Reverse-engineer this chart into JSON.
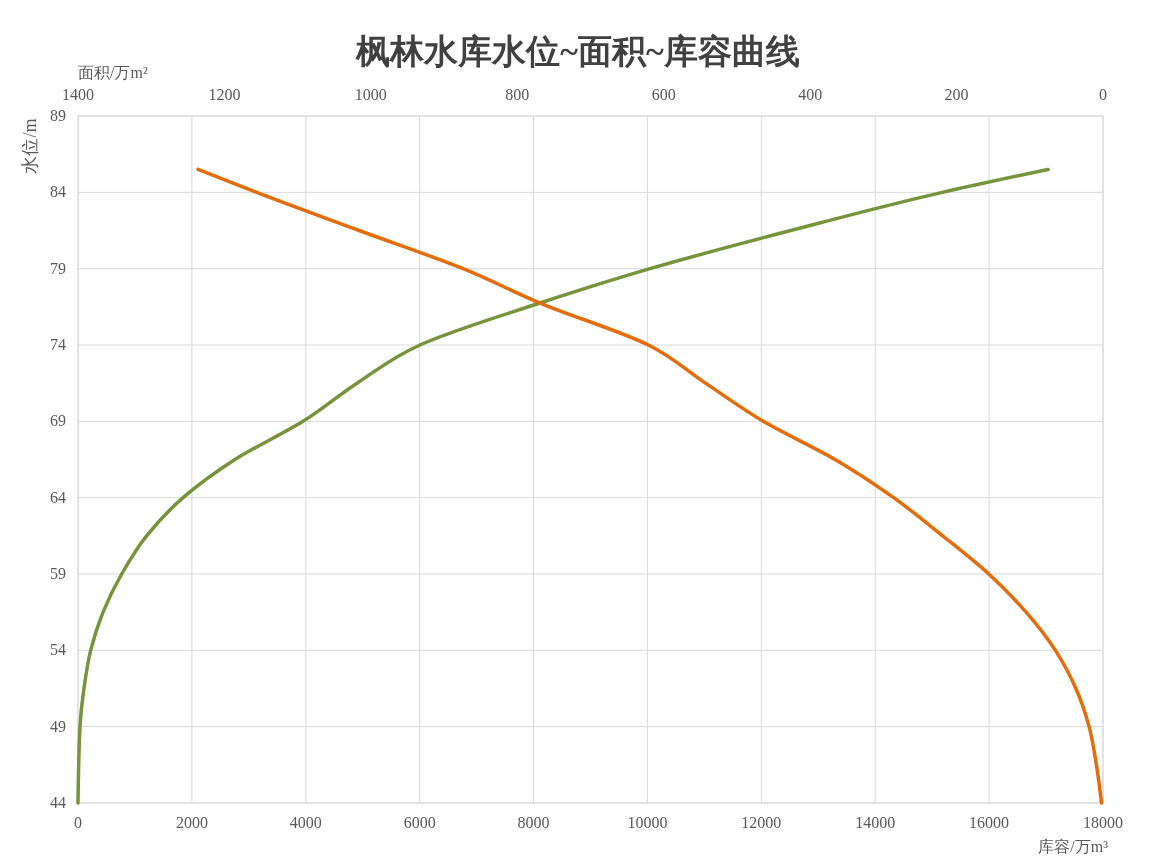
{
  "chart_data": {
    "type": "line",
    "title": "枫林水库水位~面积~库容曲线",
    "xlabel": "库容/万m³",
    "x2label": "面积/万m²",
    "ylabel": "水位/m",
    "xlim": [
      0,
      18000
    ],
    "xticks": [
      0,
      2000,
      4000,
      6000,
      8000,
      10000,
      12000,
      14000,
      16000,
      18000
    ],
    "x2lim": [
      1400,
      0
    ],
    "x2ticks": [
      1400,
      1200,
      1000,
      800,
      600,
      400,
      200,
      0
    ],
    "ylim": [
      44,
      89
    ],
    "yticks": [
      44,
      49,
      54,
      59,
      64,
      69,
      74,
      79,
      84,
      89
    ],
    "grid": true,
    "marker": "none",
    "line_style": "solid",
    "series": [
      {
        "color": "#77933c",
        "x": [
          0,
          35,
          105,
          222,
          440,
          767,
          1205,
          1845,
          2757,
          3951,
          4900,
          6005,
          8113,
          10045,
          12516,
          15180,
          17035
        ],
        "values": [
          44,
          49,
          51.5,
          54,
          56.5,
          59,
          61.5,
          64,
          66.5,
          69,
          71.5,
          74,
          76.75,
          79,
          81.5,
          84,
          85.5
        ]
      },
      {
        "color": "#e46c0a",
        "axis": "x2",
        "x": [
          1236,
          1156,
          1016,
          874,
          769,
          621,
          543,
          464,
          366,
          286,
          219,
          156,
          105,
          65,
          37,
          19,
          9,
          2
        ],
        "values": [
          85.5,
          84,
          81.5,
          79,
          76.75,
          74,
          71.5,
          69,
          66.5,
          64,
          61.5,
          59,
          56.5,
          54,
          51.5,
          49,
          46.5,
          44
        ]
      }
    ]
  }
}
